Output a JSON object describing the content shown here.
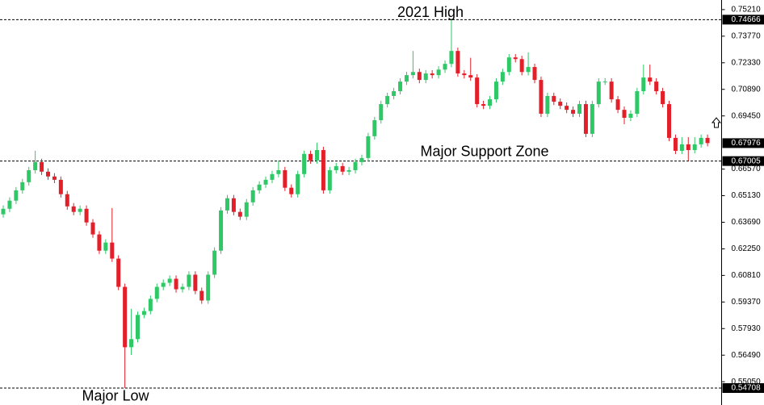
{
  "chart_data": {
    "type": "candlestick",
    "ylim": [
      0.5379,
      0.7573
    ],
    "yticks": [
      {
        "value": 0.7521,
        "label": "0.75210"
      },
      {
        "value": 0.7377,
        "label": "0.73770"
      },
      {
        "value": 0.7233,
        "label": "0.72330"
      },
      {
        "value": 0.7089,
        "label": "0.70890"
      },
      {
        "value": 0.6945,
        "label": "0.69450"
      },
      {
        "value": 0.6657,
        "label": "0.66570"
      },
      {
        "value": 0.6513,
        "label": "0.65130"
      },
      {
        "value": 0.6369,
        "label": "0.63690"
      },
      {
        "value": 0.6225,
        "label": "0.62250"
      },
      {
        "value": 0.6081,
        "label": "0.60810"
      },
      {
        "value": 0.5937,
        "label": "0.59370"
      },
      {
        "value": 0.5793,
        "label": "0.57930"
      },
      {
        "value": 0.5649,
        "label": "0.56490"
      },
      {
        "value": 0.5505,
        "label": "0.55050"
      }
    ],
    "price_levels": [
      {
        "value": 0.74666,
        "label": "0.74666",
        "annotation": "2021 High"
      },
      {
        "value": 0.67005,
        "label": "0.67005",
        "annotation": "Major Support Zone"
      },
      {
        "value": 0.54708,
        "label": "0.54708",
        "annotation": "Major Low"
      }
    ],
    "current_price": {
      "value": 0.67976,
      "label": "0.67976"
    },
    "up_color": "#2ec866",
    "down_color": "#e3202a",
    "open": [
      0.6412,
      0.6442,
      0.6486,
      0.6542,
      0.6586,
      0.6651,
      0.6695,
      0.6643,
      0.6617,
      0.6599,
      0.6521,
      0.6455,
      0.6425,
      0.6442,
      0.6368,
      0.6303,
      0.6215,
      0.6259,
      0.6172,
      0.6019,
      0.5692,
      0.5736,
      0.5867,
      0.5888,
      0.5954,
      0.6019,
      0.6041,
      0.6063,
      0.6006,
      0.6019,
      0.6085,
      0.5997,
      0.5945,
      0.6085,
      0.6215,
      0.6433,
      0.6499,
      0.6425,
      0.6399,
      0.6477,
      0.6542,
      0.6573,
      0.6599,
      0.663,
      0.6651,
      0.6556,
      0.6521,
      0.663,
      0.6739,
      0.6704,
      0.676,
      0.6542,
      0.6651,
      0.6673,
      0.6643,
      0.6651,
      0.6695,
      0.6717,
      0.6835,
      0.6922,
      0.7009,
      0.7053,
      0.7079,
      0.7131,
      0.7166,
      0.7183,
      0.714,
      0.7175,
      0.7166,
      0.7196,
      0.7227,
      0.7297,
      0.7175,
      0.7166,
      0.7153,
      0.7009,
      0.7,
      0.7035,
      0.7131,
      0.7183,
      0.7262,
      0.7253,
      0.7183,
      0.721,
      0.714,
      0.6957,
      0.7053,
      0.7022,
      0.7,
      0.6978,
      0.6957,
      0.7009,
      0.6848,
      0.7009,
      0.7131,
      0.7131,
      0.7035,
      0.6978,
      0.6935,
      0.6957,
      0.7079,
      0.7153,
      0.7131,
      0.7079,
      0.7009,
      0.6826,
      0.6756,
      0.6791,
      0.676,
      0.6791,
      0.6826
    ],
    "high": [
      0.646,
      0.6504,
      0.656,
      0.6604,
      0.6669,
      0.6756,
      0.6713,
      0.6661,
      0.6635,
      0.6617,
      0.6539,
      0.6473,
      0.646,
      0.646,
      0.6386,
      0.6321,
      0.6277,
      0.6446,
      0.619,
      0.6037,
      0.59,
      0.5885,
      0.5906,
      0.5972,
      0.6037,
      0.6059,
      0.6081,
      0.6081,
      0.6037,
      0.6103,
      0.6103,
      0.6015,
      0.6103,
      0.6233,
      0.6451,
      0.6517,
      0.6517,
      0.6443,
      0.6495,
      0.656,
      0.6591,
      0.6617,
      0.6648,
      0.6704,
      0.6669,
      0.6574,
      0.6648,
      0.6757,
      0.6757,
      0.68,
      0.6778,
      0.6669,
      0.6691,
      0.6691,
      0.6669,
      0.6713,
      0.6735,
      0.6853,
      0.694,
      0.7027,
      0.7071,
      0.7097,
      0.7149,
      0.7184,
      0.7297,
      0.7201,
      0.7193,
      0.7193,
      0.7214,
      0.7245,
      0.7467,
      0.7315,
      0.7193,
      0.726,
      0.7171,
      0.7027,
      0.7053,
      0.7149,
      0.7201,
      0.728,
      0.728,
      0.7271,
      0.729,
      0.7228,
      0.7158,
      0.7071,
      0.7071,
      0.704,
      0.7018,
      0.6996,
      0.7027,
      0.7027,
      0.7027,
      0.7149,
      0.7149,
      0.7149,
      0.7053,
      0.6996,
      0.6975,
      0.7097,
      0.7223,
      0.7223,
      0.7149,
      0.7097,
      0.7027,
      0.6844,
      0.683,
      0.683,
      0.683,
      0.6844,
      0.6844
    ],
    "low": [
      0.6394,
      0.6424,
      0.6468,
      0.6524,
      0.6568,
      0.6633,
      0.6625,
      0.6599,
      0.6581,
      0.6503,
      0.6437,
      0.6407,
      0.6407,
      0.635,
      0.6285,
      0.6197,
      0.6197,
      0.6154,
      0.6001,
      0.5471,
      0.565,
      0.5718,
      0.5849,
      0.587,
      0.5936,
      0.6001,
      0.6023,
      0.5988,
      0.5988,
      0.6001,
      0.5979,
      0.5927,
      0.5927,
      0.6067,
      0.6197,
      0.6415,
      0.6407,
      0.6381,
      0.6381,
      0.6459,
      0.6524,
      0.6555,
      0.6581,
      0.6612,
      0.6538,
      0.6503,
      0.6503,
      0.6612,
      0.6686,
      0.6686,
      0.6524,
      0.6524,
      0.6633,
      0.6625,
      0.6625,
      0.6633,
      0.6677,
      0.6699,
      0.6817,
      0.6904,
      0.6991,
      0.7035,
      0.7061,
      0.7113,
      0.7148,
      0.7122,
      0.7122,
      0.7148,
      0.7148,
      0.7178,
      0.7209,
      0.7157,
      0.7148,
      0.7135,
      0.6991,
      0.6982,
      0.6982,
      0.7017,
      0.7113,
      0.7165,
      0.7235,
      0.7165,
      0.7165,
      0.7122,
      0.6939,
      0.6939,
      0.7004,
      0.6982,
      0.696,
      0.6939,
      0.6939,
      0.683,
      0.683,
      0.6991,
      0.7113,
      0.7017,
      0.696,
      0.69,
      0.6917,
      0.6939,
      0.7061,
      0.7113,
      0.7061,
      0.6991,
      0.6808,
      0.6738,
      0.6738,
      0.6701,
      0.6742,
      0.6773,
      0.678
    ],
    "close": [
      0.6442,
      0.6486,
      0.6542,
      0.6586,
      0.6651,
      0.6695,
      0.6643,
      0.6617,
      0.6599,
      0.6521,
      0.6455,
      0.6425,
      0.6442,
      0.6368,
      0.6303,
      0.6215,
      0.6259,
      0.6172,
      0.6019,
      0.5692,
      0.5736,
      0.5867,
      0.5888,
      0.5954,
      0.6019,
      0.6041,
      0.6063,
      0.6006,
      0.6019,
      0.6085,
      0.5997,
      0.5945,
      0.6085,
      0.6215,
      0.6433,
      0.6499,
      0.6425,
      0.6399,
      0.6477,
      0.6542,
      0.6573,
      0.6599,
      0.663,
      0.6651,
      0.6556,
      0.6521,
      0.663,
      0.6739,
      0.6704,
      0.676,
      0.6542,
      0.6651,
      0.6673,
      0.6643,
      0.6651,
      0.6695,
      0.6717,
      0.6835,
      0.6922,
      0.7009,
      0.7053,
      0.7079,
      0.7131,
      0.7166,
      0.7183,
      0.714,
      0.7175,
      0.7166,
      0.7196,
      0.7227,
      0.7297,
      0.7175,
      0.7166,
      0.7153,
      0.7009,
      0.7,
      0.7035,
      0.7131,
      0.7183,
      0.7262,
      0.7253,
      0.7183,
      0.721,
      0.714,
      0.6957,
      0.7053,
      0.7022,
      0.7,
      0.6978,
      0.6957,
      0.7009,
      0.6848,
      0.7009,
      0.7131,
      0.7131,
      0.7035,
      0.6978,
      0.6935,
      0.6957,
      0.7079,
      0.7153,
      0.7131,
      0.7079,
      0.7009,
      0.6826,
      0.6756,
      0.6791,
      0.676,
      0.6791,
      0.6826,
      0.6798
    ]
  }
}
